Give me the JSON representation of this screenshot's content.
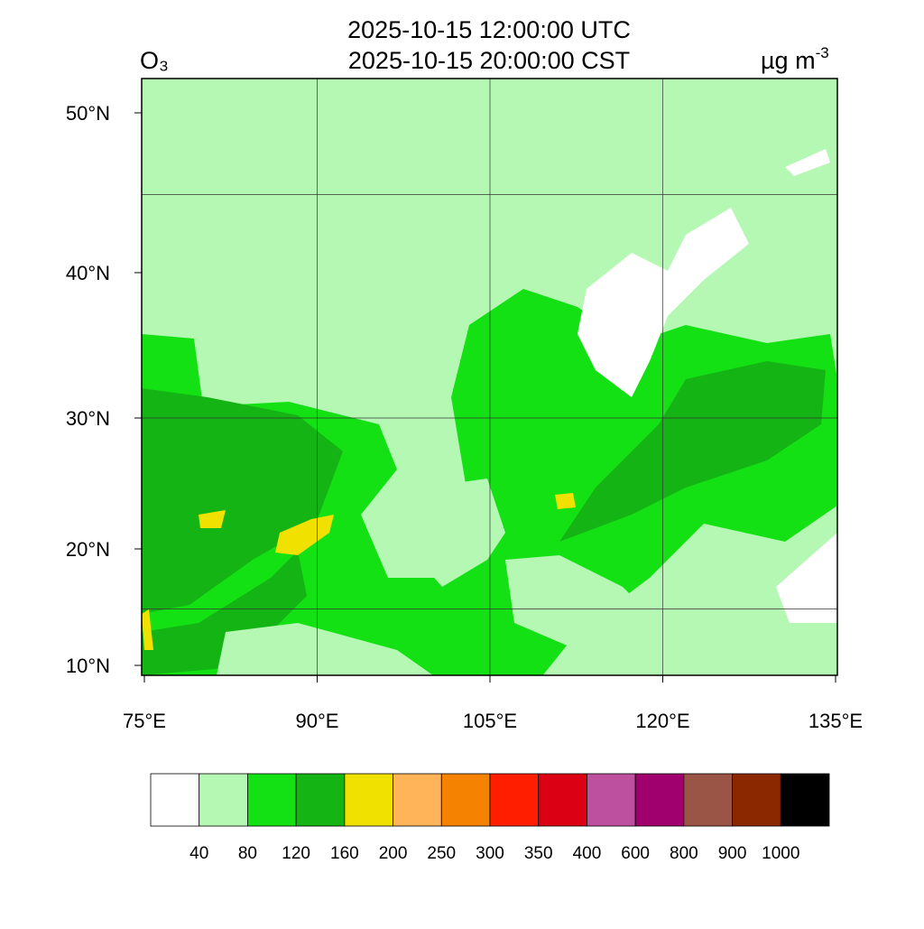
{
  "header": {
    "title_lines": [
      "2025-10-15 12:00:00 UTC",
      "2025-10-15 20:00:00 CST"
    ],
    "species": "O₃",
    "units": "µg m",
    "units_exponent": "-3"
  },
  "map": {
    "lon_ticks": [
      {
        "value": 75,
        "label": "75°E"
      },
      {
        "value": 90,
        "label": "90°E"
      },
      {
        "value": 105,
        "label": "105°E"
      },
      {
        "value": 120,
        "label": "120°E"
      },
      {
        "value": 135,
        "label": "135°E"
      }
    ],
    "lat_ticks": [
      {
        "value": 10,
        "label": "10°N"
      },
      {
        "value": 20,
        "label": "20°N"
      },
      {
        "value": 30,
        "label": "30°N"
      },
      {
        "value": 40,
        "label": "40°N"
      },
      {
        "value": 50,
        "label": "50°N"
      }
    ],
    "lon_gridlines": [
      90,
      105,
      120
    ],
    "lat_gridlines": [
      15,
      30,
      45
    ]
  },
  "colorbar": {
    "colors": [
      "#ffffff",
      "#b4f8b4",
      "#14e114",
      "#14b414",
      "#f0e100",
      "#ffb45a",
      "#f58200",
      "#ff1e00",
      "#dc0014",
      "#be50a0",
      "#a0006e",
      "#9b5546",
      "#8c2800",
      "#000000"
    ],
    "labels": [
      "40",
      "80",
      "120",
      "160",
      "200",
      "250",
      "300",
      "350",
      "400",
      "600",
      "800",
      "900",
      "1000"
    ]
  }
}
